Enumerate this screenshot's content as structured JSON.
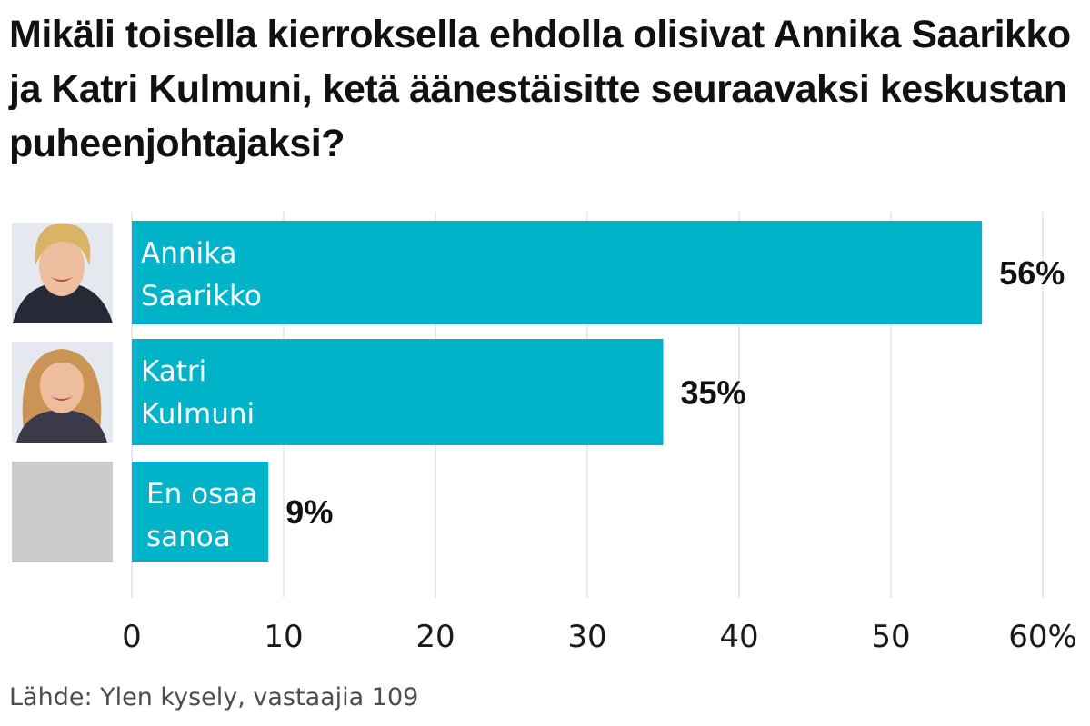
{
  "chart_data": {
    "type": "bar",
    "orientation": "horizontal",
    "title": "Mikäli toisella kierroksella ehdolla olisivat Annika Saarikko ja Katri Kulmuni, ketä äänestäisitte seuraavaksi keskustan puheenjohtajaksi?",
    "categories": [
      [
        "Annika",
        "Saarikko"
      ],
      [
        "Katri",
        "Kulmuni"
      ],
      [
        "En osaa",
        "sanoa"
      ]
    ],
    "values": [
      56,
      35,
      9
    ],
    "value_labels": [
      "56%",
      "35%",
      "9%"
    ],
    "x_ticks": [
      "0",
      "10",
      "20",
      "30",
      "40",
      "50",
      "60%"
    ],
    "xlim": [
      0,
      60
    ],
    "grid": true,
    "source": "Lähde: Ylen kysely, vastaajia 109",
    "colors": {
      "bar": "#00b3c8",
      "grid": "#e3e3e3",
      "placeholder": "#cccccc",
      "photo_bg": "#e6e8f0"
    }
  }
}
